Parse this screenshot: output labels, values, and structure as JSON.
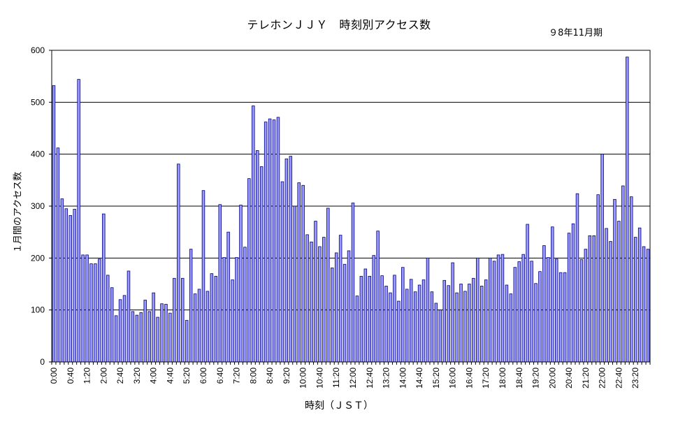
{
  "chart_data": {
    "type": "bar",
    "title": "テレホンＪＪＹ　時刻別アクセス数",
    "subtitle": "９8年11月期",
    "xlabel": "時刻（ＪＳＴ）",
    "ylabel": "１月間のアクセス数",
    "ylim": [
      0,
      600
    ],
    "yticks": [
      0,
      100,
      200,
      300,
      400,
      500,
      600
    ],
    "grid": true,
    "bar_color": "#9999ff",
    "bar_outline": "#000080",
    "interval_minutes": 10,
    "xtick_labels": [
      "0:00",
      "0:40",
      "1:20",
      "2:00",
      "2:40",
      "3:20",
      "4:00",
      "4:40",
      "5:20",
      "6:00",
      "6:40",
      "7:20",
      "8:00",
      "8:40",
      "9:20",
      "10:00",
      "10:40",
      "11:20",
      "12:00",
      "12:40",
      "13:20",
      "14:00",
      "14:40",
      "15:20",
      "16:00",
      "16:40",
      "17:20",
      "18:00",
      "18:40",
      "19:20",
      "20:00",
      "20:40",
      "21:20",
      "22:00",
      "22:40",
      "23:20"
    ],
    "values": [
      532,
      412,
      314,
      295,
      282,
      294,
      544,
      206,
      206,
      189,
      189,
      198,
      285,
      167,
      143,
      89,
      120,
      128,
      175,
      97,
      90,
      95,
      119,
      97,
      133,
      86,
      112,
      111,
      94,
      161,
      381,
      161,
      80,
      217,
      131,
      140,
      330,
      136,
      170,
      165,
      303,
      201,
      250,
      158,
      201,
      302,
      221,
      353,
      493,
      407,
      376,
      462,
      468,
      466,
      471,
      347,
      391,
      396,
      300,
      345,
      340,
      245,
      231,
      271,
      222,
      240,
      296,
      181,
      210,
      244,
      188,
      214,
      306,
      127,
      165,
      179,
      165,
      205,
      252,
      166,
      146,
      133,
      167,
      117,
      182,
      140,
      159,
      135,
      148,
      158,
      200,
      135,
      113,
      100,
      157,
      147,
      191,
      133,
      150,
      136,
      150,
      161,
      200,
      146,
      158,
      200,
      194,
      206,
      207,
      148,
      131,
      182,
      193,
      207,
      265,
      194,
      151,
      174,
      224,
      201,
      260,
      198,
      172,
      172,
      248,
      266,
      324,
      197,
      217,
      243,
      243,
      322,
      400,
      257,
      232,
      313,
      271,
      339,
      587,
      318,
      240,
      258,
      222,
      217
    ]
  }
}
